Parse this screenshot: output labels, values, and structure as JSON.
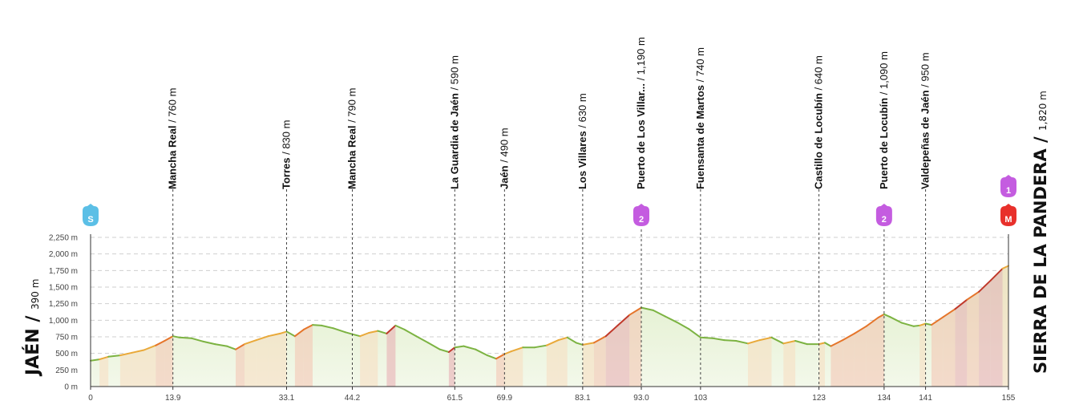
{
  "chart_data": {
    "type": "area",
    "x_unit": "km",
    "y_unit": "m",
    "ylim": [
      0,
      2250
    ],
    "y_ticks": [
      "0 m",
      "250 m",
      "500 m",
      "750 m",
      "1,000 m",
      "1,250 m",
      "1,500 m",
      "1,750 m",
      "2,000 m",
      "2,250 m"
    ],
    "y_tick_values": [
      0,
      250,
      500,
      750,
      1000,
      1250,
      1500,
      1750,
      2000,
      2250
    ],
    "x_ticks": [
      {
        "value": 0,
        "label": "0"
      },
      {
        "value": 13.9,
        "label": "13.9"
      },
      {
        "value": 33.1,
        "label": "33.1"
      },
      {
        "value": 44.2,
        "label": "44.2"
      },
      {
        "value": 61.5,
        "label": "61.5"
      },
      {
        "value": 69.9,
        "label": "69.9"
      },
      {
        "value": 83.1,
        "label": "83.1"
      },
      {
        "value": 93.0,
        "label": "93.0"
      },
      {
        "value": 103,
        "label": "103"
      },
      {
        "value": 123,
        "label": "123"
      },
      {
        "value": 134,
        "label": "134"
      },
      {
        "value": 141,
        "label": "141"
      },
      {
        "value": 155,
        "label": "155"
      }
    ],
    "grid": true,
    "start": {
      "name": "JAÉN",
      "altitude": "390 m",
      "badge": "S"
    },
    "finish": {
      "name": "SIERRA DE LA PANDERA",
      "altitude": "1,820 m",
      "badge": "M",
      "climb_category": "1"
    },
    "waypoints": [
      {
        "km": 13.9,
        "name": "Mancha Real",
        "altitude": "760 m"
      },
      {
        "km": 33.1,
        "name": "Torres",
        "altitude": "830 m"
      },
      {
        "km": 44.2,
        "name": "Mancha Real",
        "altitude": "790 m"
      },
      {
        "km": 61.5,
        "name": "La Guardia de Jaén",
        "altitude": "590 m"
      },
      {
        "km": 69.9,
        "name": "Jaén",
        "altitude": "490 m"
      },
      {
        "km": 83.1,
        "name": "Los Villares",
        "altitude": "630 m"
      },
      {
        "km": 93.0,
        "name": "Puerto de Los Villar...",
        "altitude": "1,190 m",
        "climb_category": "2"
      },
      {
        "km": 103,
        "name": "Fuensanta de Martos",
        "altitude": "740 m"
      },
      {
        "km": 123,
        "name": "Castillo de Locubín",
        "altitude": "640 m"
      },
      {
        "km": 134,
        "name": "Puerto de Locubín",
        "altitude": "1,090 m",
        "climb_category": "2"
      },
      {
        "km": 141,
        "name": "Valdepeñas de Jaén",
        "altitude": "950 m"
      }
    ],
    "profile": [
      [
        0,
        390
      ],
      [
        1.5,
        410
      ],
      [
        3,
        450
      ],
      [
        5,
        470
      ],
      [
        7,
        510
      ],
      [
        9,
        550
      ],
      [
        11,
        620
      ],
      [
        12.5,
        690
      ],
      [
        13.9,
        760
      ],
      [
        15,
        740
      ],
      [
        17,
        730
      ],
      [
        19,
        680
      ],
      [
        21,
        640
      ],
      [
        23,
        610
      ],
      [
        24.5,
        560
      ],
      [
        26,
        640
      ],
      [
        28,
        700
      ],
      [
        30,
        760
      ],
      [
        32,
        800
      ],
      [
        33.1,
        830
      ],
      [
        34.5,
        760
      ],
      [
        36,
        860
      ],
      [
        37.5,
        930
      ],
      [
        39,
        920
      ],
      [
        41,
        880
      ],
      [
        43,
        820
      ],
      [
        44.2,
        790
      ],
      [
        45.5,
        760
      ],
      [
        47,
        810
      ],
      [
        48.5,
        840
      ],
      [
        50,
        800
      ],
      [
        51.5,
        920
      ],
      [
        53,
        860
      ],
      [
        55,
        760
      ],
      [
        57,
        660
      ],
      [
        59,
        560
      ],
      [
        60.5,
        520
      ],
      [
        61.5,
        590
      ],
      [
        63,
        610
      ],
      [
        65,
        560
      ],
      [
        67,
        470
      ],
      [
        68.5,
        420
      ],
      [
        69.9,
        490
      ],
      [
        71,
        530
      ],
      [
        73,
        590
      ],
      [
        75,
        590
      ],
      [
        77,
        620
      ],
      [
        79,
        700
      ],
      [
        80.5,
        740
      ],
      [
        82,
        660
      ],
      [
        83.1,
        630
      ],
      [
        85,
        660
      ],
      [
        87,
        760
      ],
      [
        89,
        920
      ],
      [
        91,
        1080
      ],
      [
        93.0,
        1190
      ],
      [
        95,
        1150
      ],
      [
        97,
        1060
      ],
      [
        99,
        970
      ],
      [
        101,
        870
      ],
      [
        103,
        740
      ],
      [
        105,
        730
      ],
      [
        107,
        700
      ],
      [
        109,
        690
      ],
      [
        111,
        650
      ],
      [
        113,
        700
      ],
      [
        115,
        740
      ],
      [
        117,
        650
      ],
      [
        119,
        690
      ],
      [
        121,
        640
      ],
      [
        123,
        640
      ],
      [
        124,
        660
      ],
      [
        125,
        610
      ],
      [
        127,
        700
      ],
      [
        129,
        800
      ],
      [
        131,
        910
      ],
      [
        133,
        1040
      ],
      [
        134,
        1090
      ],
      [
        135,
        1050
      ],
      [
        137,
        960
      ],
      [
        139,
        910
      ],
      [
        140,
        920
      ],
      [
        141,
        950
      ],
      [
        142,
        930
      ],
      [
        144,
        1050
      ],
      [
        146,
        1170
      ],
      [
        148,
        1310
      ],
      [
        150,
        1430
      ],
      [
        152,
        1600
      ],
      [
        154,
        1780
      ],
      [
        155,
        1820
      ]
    ]
  }
}
